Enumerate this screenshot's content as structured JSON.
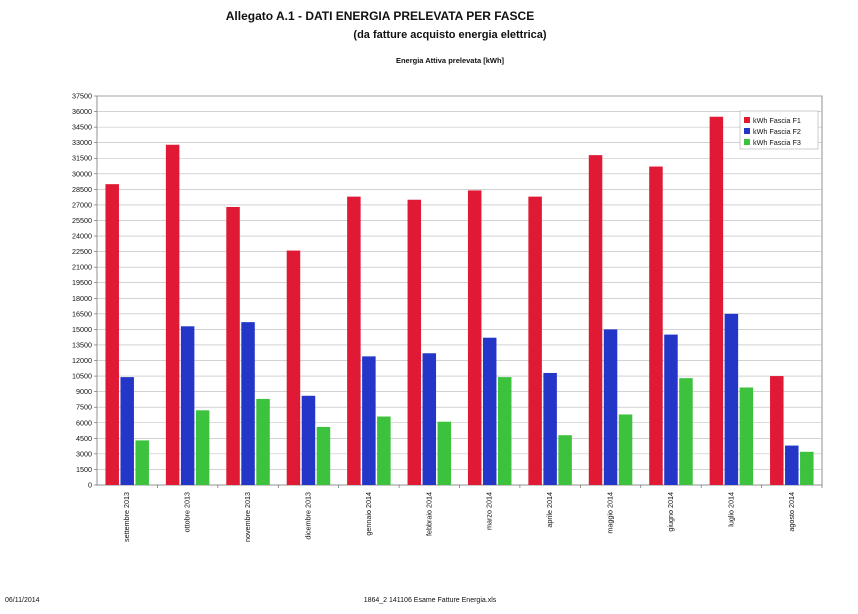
{
  "document": {
    "title": "Allegato A.1 - DATI ENERGIA PRELEVATA PER FASCE",
    "subtitle": "(da fatture acquisto energia elettrica)",
    "footer_date": "06/11/2014",
    "footer_file": "1864_2 141106 Esame Fatture Energia.xls"
  },
  "chart_data": {
    "type": "bar",
    "title": "Energia Attiva prelevata [kWh]",
    "xlabel": "",
    "ylabel": "",
    "ylim": [
      0,
      37500
    ],
    "ytick_step": 1500,
    "grid": true,
    "legend_position": "top-right",
    "categories": [
      "settembre 2013",
      "ottobre 2013",
      "novembre 2013",
      "dicembre 2013",
      "gennaio 2014",
      "febbraio 2014",
      "marzo 2014",
      "aprile 2014",
      "maggio 2014",
      "giugno 2014",
      "luglio 2014",
      "agosto 2014"
    ],
    "series": [
      {
        "name": "kWh Fascia F1",
        "color": "#e01935",
        "values": [
          29000,
          32800,
          26800,
          22600,
          27800,
          27500,
          28400,
          27800,
          31800,
          30700,
          35500,
          10500
        ]
      },
      {
        "name": "kWh Fascia F2",
        "color": "#2436c8",
        "values": [
          10400,
          15300,
          15700,
          8600,
          12400,
          12700,
          14200,
          10800,
          15000,
          14500,
          16500,
          3800
        ]
      },
      {
        "name": "kWh Fascia F3",
        "color": "#3cc23c",
        "values": [
          4300,
          7200,
          8300,
          5600,
          6600,
          6100,
          10400,
          4800,
          6800,
          10300,
          9400,
          3200
        ]
      }
    ]
  }
}
